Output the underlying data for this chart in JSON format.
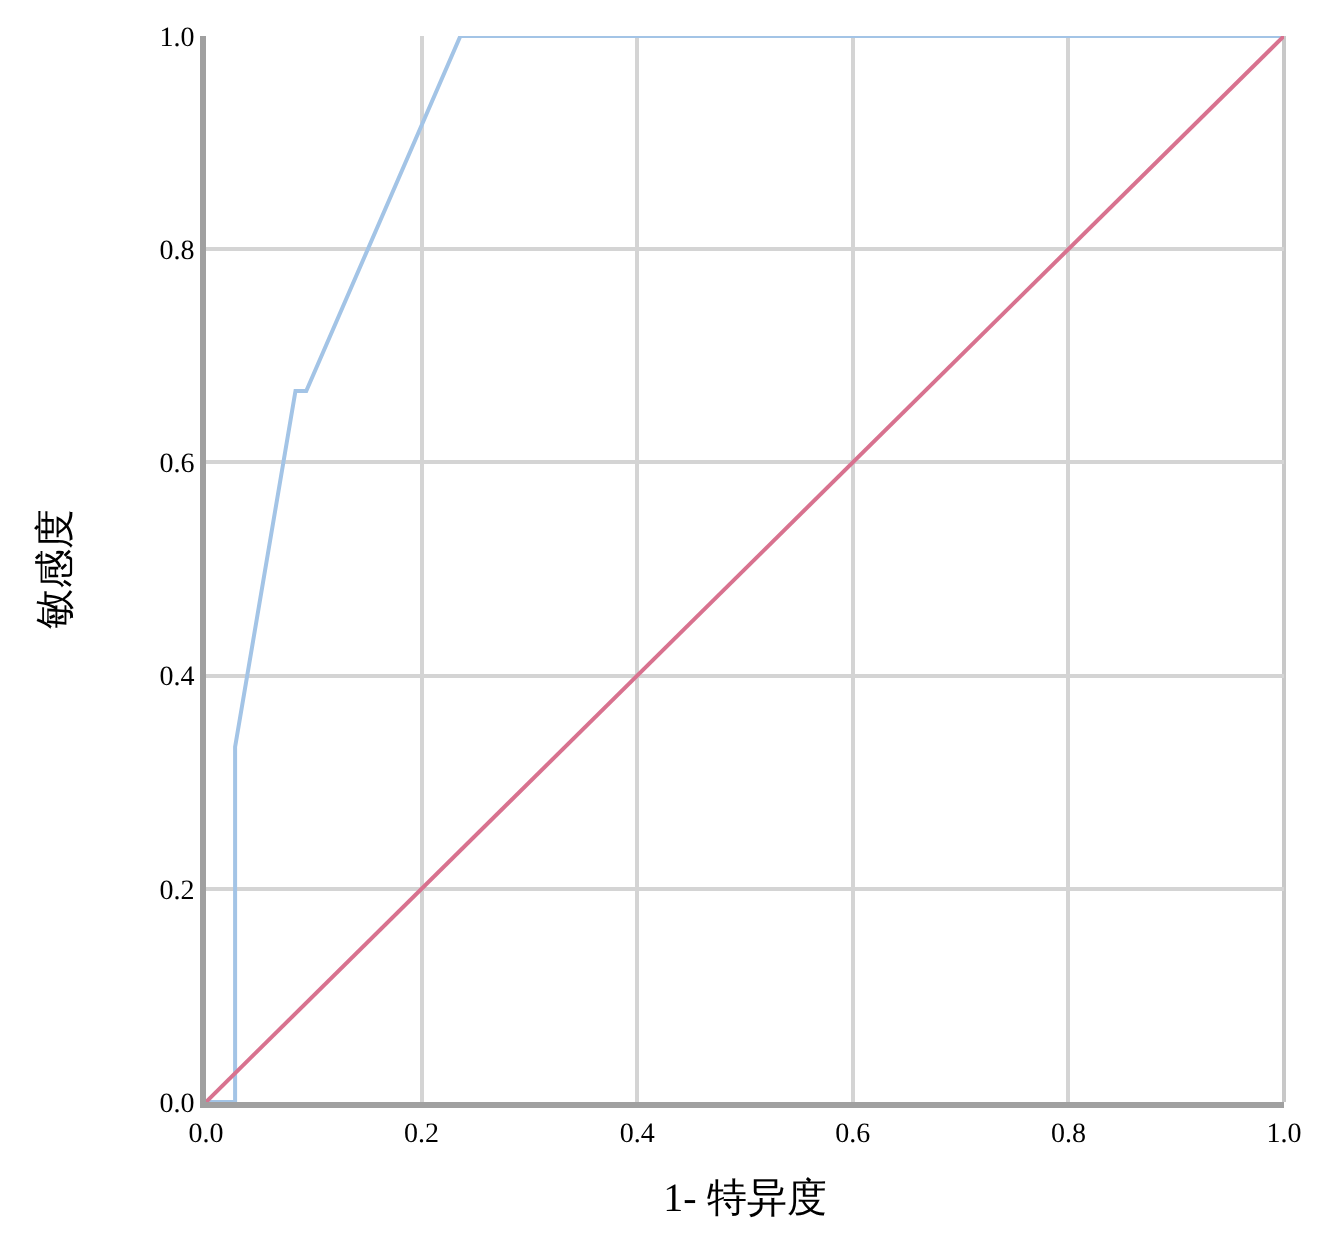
{
  "chart_data": {
    "type": "line",
    "xlabel": "1- 特异度",
    "ylabel": "敏感度",
    "series": [
      {
        "color": "#a3c4e6",
        "x": [
          0,
          0.027,
          0.027,
          0.083,
          0.093,
          0.236,
          1
        ],
        "values": [
          0,
          0,
          0.333,
          0.667,
          0.667,
          1,
          1
        ]
      },
      {
        "color": "#d8728f",
        "x": [
          0,
          1
        ],
        "values": [
          0,
          1
        ]
      }
    ],
    "xlim": [
      0,
      1
    ],
    "ylim": [
      0,
      1
    ],
    "xticks": [
      {
        "value": 0,
        "label": "0.0"
      },
      {
        "value": 0.2,
        "label": "0.2"
      },
      {
        "value": 0.4,
        "label": "0.4"
      },
      {
        "value": 0.6,
        "label": "0.6"
      },
      {
        "value": 0.8,
        "label": "0.8"
      },
      {
        "value": 1,
        "label": "1.0"
      }
    ],
    "yticks": [
      {
        "value": 0,
        "label": "0.0"
      },
      {
        "value": 0.2,
        "label": "0.2"
      },
      {
        "value": 0.4,
        "label": "0.4"
      },
      {
        "value": 0.6,
        "label": "0.6"
      },
      {
        "value": 0.8,
        "label": "0.8"
      },
      {
        "value": 1,
        "label": "1.0"
      }
    ],
    "grid": true,
    "marker": "none",
    "line_style": "solid"
  }
}
